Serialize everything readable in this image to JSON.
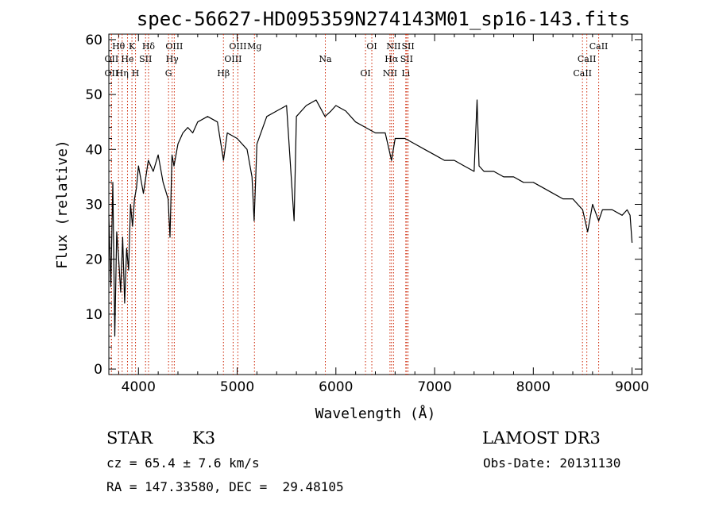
{
  "chart_data": {
    "type": "line",
    "title": "spec-56627-HD095359N274143M01_sp16-143.fits",
    "xlabel": "Wavelength (Å)",
    "ylabel": "Flux (relative)",
    "xlim": [
      3700,
      9100
    ],
    "ylim": [
      -1,
      61
    ],
    "xticks": [
      4000,
      5000,
      6000,
      7000,
      8000,
      9000
    ],
    "xtick_labels": [
      "4000",
      "5000",
      "6000",
      "7000",
      "8000",
      "9000"
    ],
    "yticks": [
      0,
      10,
      20,
      30,
      40,
      50,
      60
    ],
    "ytick_labels": [
      "0",
      "10",
      "20",
      "30",
      "40",
      "50",
      "60"
    ],
    "grid": false,
    "series": [
      {
        "name": "flux",
        "color": "#000000",
        "x": [
          3700,
          3720,
          3740,
          3760,
          3780,
          3800,
          3820,
          3840,
          3860,
          3880,
          3900,
          3920,
          3940,
          3960,
          3980,
          4000,
          4050,
          4100,
          4150,
          4200,
          4250,
          4300,
          4320,
          4340,
          4360,
          4400,
          4450,
          4500,
          4550,
          4600,
          4700,
          4800,
          4861,
          4900,
          5000,
          5100,
          5150,
          5172,
          5200,
          5300,
          5400,
          5500,
          5577,
          5600,
          5700,
          5800,
          5890,
          5950,
          6000,
          6100,
          6200,
          6300,
          6400,
          6500,
          6563,
          6600,
          6700,
          6800,
          6900,
          7000,
          7100,
          7200,
          7300,
          7400,
          7430,
          7450,
          7500,
          7600,
          7700,
          7800,
          7900,
          8000,
          8100,
          8200,
          8300,
          8400,
          8500,
          8550,
          8600,
          8662,
          8700,
          8800,
          8900,
          8950,
          8980,
          9000
        ],
        "y": [
          28,
          15,
          34,
          6,
          25,
          20,
          14,
          24,
          12,
          22,
          18,
          30,
          26,
          31,
          33,
          37,
          32,
          38,
          36,
          39,
          34,
          31,
          24,
          39,
          37,
          41,
          43,
          44,
          43,
          45,
          46,
          45,
          38,
          43,
          42,
          40,
          35,
          27,
          41,
          46,
          47,
          48,
          27,
          46,
          48,
          49,
          46,
          47,
          48,
          47,
          45,
          44,
          43,
          43,
          38,
          42,
          42,
          41,
          40,
          39,
          38,
          38,
          37,
          36,
          49,
          37,
          36,
          36,
          35,
          35,
          34,
          34,
          33,
          32,
          31,
          31,
          29,
          25,
          30,
          27,
          29,
          29,
          28,
          29,
          28,
          23
        ]
      }
    ],
    "lines": [
      {
        "label": "Hθ",
        "wavelength": 3798
      },
      {
        "label": "OII",
        "wavelength": 3727
      },
      {
        "label": "OII",
        "wavelength": 3727
      },
      {
        "label": "K",
        "wavelength": 3934
      },
      {
        "label": "He",
        "wavelength": 3889
      },
      {
        "label": "Hη",
        "wavelength": 3835
      },
      {
        "label": "Hδ",
        "wavelength": 4102
      },
      {
        "label": "SII",
        "wavelength": 4072
      },
      {
        "label": "H",
        "wavelength": 3970
      },
      {
        "label": "OIII",
        "wavelength": 4363
      },
      {
        "label": "Hγ",
        "wavelength": 4341
      },
      {
        "label": "G",
        "wavelength": 4305
      },
      {
        "label": "OIII",
        "wavelength": 5007
      },
      {
        "label": "OIII",
        "wavelength": 4959
      },
      {
        "label": "Hβ",
        "wavelength": 4861
      },
      {
        "label": "Mg",
        "wavelength": 5175
      },
      {
        "label": "Na",
        "wavelength": 5893
      },
      {
        "label": "OI",
        "wavelength": 6300
      },
      {
        "label": "OI",
        "wavelength": 6364
      },
      {
        "label": "Hα",
        "wavelength": 6563
      },
      {
        "label": "NII",
        "wavelength": 6548
      },
      {
        "label": "NII",
        "wavelength": 6584
      },
      {
        "label": "SII",
        "wavelength": 6717
      },
      {
        "label": "Li",
        "wavelength": 6708
      },
      {
        "label": "SII",
        "wavelength": 6731
      },
      {
        "label": "CaII",
        "wavelength": 8542
      },
      {
        "label": "CaII",
        "wavelength": 8498
      },
      {
        "label": "CaII",
        "wavelength": 8662
      }
    ]
  },
  "info": {
    "class_label": "STAR",
    "subclass": "K3",
    "survey": "LAMOST DR3",
    "cz_text": "cz = 65.4 ± 7.6 km/s",
    "obs_date": "Obs-Date: 20131130",
    "coords": "RA = 147.33580, DEC =  29.48105"
  },
  "colors": {
    "line_marker": "#cc2200",
    "spectrum": "#000000"
  }
}
